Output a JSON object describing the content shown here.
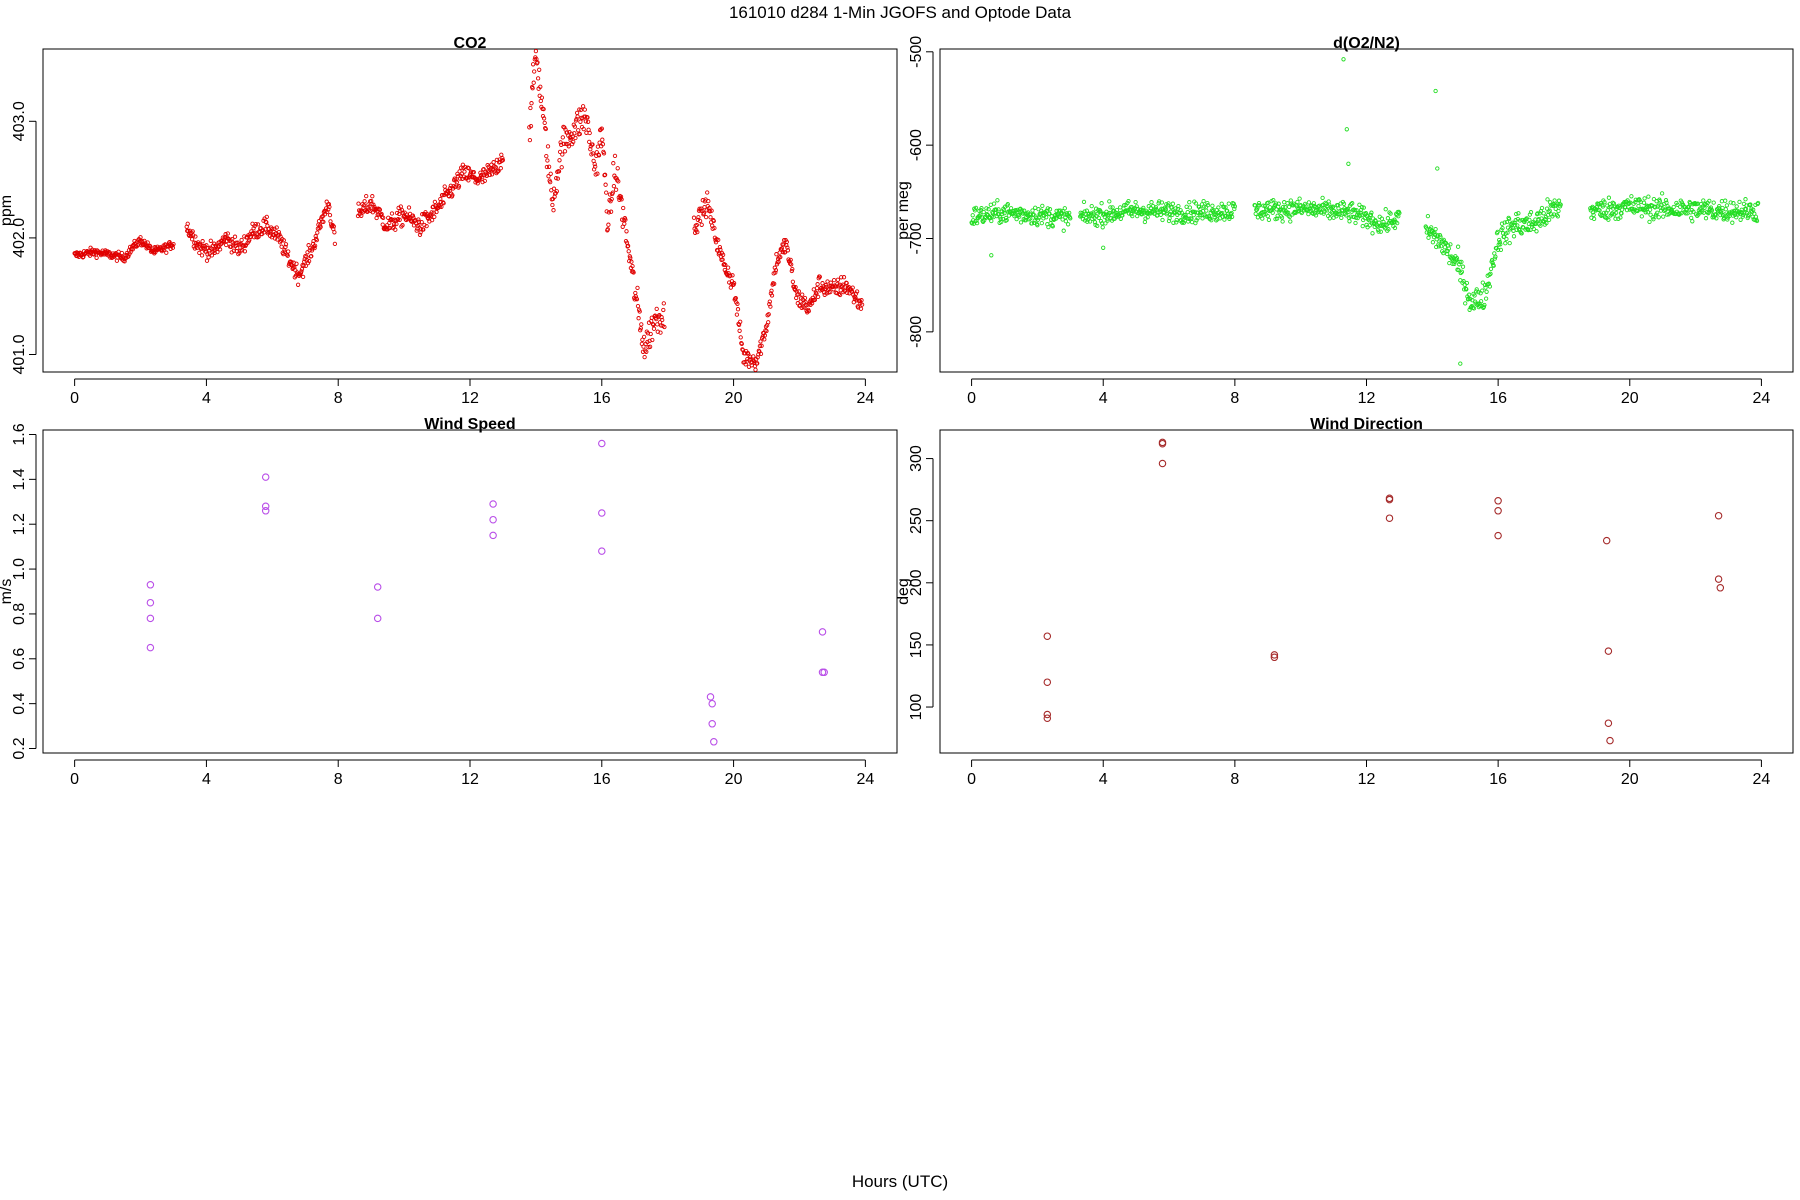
{
  "title": "161010   d284   1-Min  JGOFS and Optode Data",
  "xlabel": "Hours (UTC)",
  "chart_data": [
    {
      "type": "scatter",
      "title": "CO2",
      "ylabel": "ppm",
      "color": "#e00000",
      "xlim": [
        -0.96,
        24.96
      ],
      "ylim": [
        400.85,
        403.62
      ],
      "xticks": [
        0,
        4,
        8,
        12,
        16,
        20,
        24
      ],
      "yticks": [
        401.0,
        402.0,
        403.0
      ],
      "ytick_labels": [
        "401.0",
        "402.0",
        "403.0"
      ],
      "segments": [
        {
          "x0": 0.0,
          "x1": 3.0,
          "anchors": [
            [
              0.0,
              401.85
            ],
            [
              0.6,
              401.88
            ],
            [
              1.0,
              401.86
            ],
            [
              1.5,
              401.83
            ],
            [
              1.8,
              401.93
            ],
            [
              2.0,
              401.98
            ],
            [
              2.4,
              401.88
            ],
            [
              2.8,
              401.92
            ],
            [
              3.0,
              401.95
            ]
          ],
          "noise": 0.03
        },
        {
          "x0": 3.4,
          "x1": 7.9,
          "anchors": [
            [
              3.4,
              402.1
            ],
            [
              3.8,
              401.92
            ],
            [
              4.2,
              401.88
            ],
            [
              4.6,
              402.0
            ],
            [
              5.0,
              401.9
            ],
            [
              5.4,
              402.05
            ],
            [
              5.8,
              402.1
            ],
            [
              6.2,
              402.0
            ],
            [
              6.5,
              401.82
            ],
            [
              6.8,
              401.68
            ],
            [
              7.2,
              401.9
            ],
            [
              7.5,
              402.15
            ],
            [
              7.7,
              402.3
            ],
            [
              7.9,
              401.98
            ]
          ],
          "noise": 0.06
        },
        {
          "x0": 8.6,
          "x1": 13.0,
          "anchors": [
            [
              8.6,
              402.2
            ],
            [
              9.0,
              402.3
            ],
            [
              9.5,
              402.1
            ],
            [
              10.0,
              402.2
            ],
            [
              10.5,
              402.1
            ],
            [
              11.0,
              402.25
            ],
            [
              11.4,
              402.4
            ],
            [
              11.8,
              402.55
            ],
            [
              12.3,
              402.5
            ],
            [
              12.8,
              402.6
            ],
            [
              13.0,
              402.72
            ]
          ],
          "noise": 0.07
        },
        {
          "x0": 13.8,
          "x1": 17.9,
          "anchors": [
            [
              13.8,
              402.9
            ],
            [
              14.0,
              403.6
            ],
            [
              14.2,
              403.1
            ],
            [
              14.5,
              402.3
            ],
            [
              14.8,
              402.8
            ],
            [
              15.2,
              402.95
            ],
            [
              15.5,
              403.05
            ],
            [
              15.8,
              402.6
            ],
            [
              16.0,
              402.9
            ],
            [
              16.2,
              402.1
            ],
            [
              16.4,
              402.6
            ],
            [
              16.7,
              402.1
            ],
            [
              17.0,
              401.55
            ],
            [
              17.3,
              401.05
            ],
            [
              17.6,
              401.3
            ],
            [
              17.9,
              401.35
            ]
          ],
          "noise": 0.12
        },
        {
          "x0": 18.8,
          "x1": 23.9,
          "anchors": [
            [
              18.8,
              402.1
            ],
            [
              19.2,
              402.3
            ],
            [
              19.6,
              401.85
            ],
            [
              20.0,
              401.6
            ],
            [
              20.3,
              400.98
            ],
            [
              20.7,
              400.95
            ],
            [
              21.0,
              401.25
            ],
            [
              21.3,
              401.8
            ],
            [
              21.6,
              401.95
            ],
            [
              21.9,
              401.5
            ],
            [
              22.3,
              401.4
            ],
            [
              22.6,
              401.6
            ],
            [
              23.0,
              401.55
            ],
            [
              23.4,
              401.6
            ],
            [
              23.9,
              401.42
            ]
          ],
          "noise": 0.07
        }
      ]
    },
    {
      "type": "scatter",
      "title": "d(O2/N2)",
      "ylabel": "per meg",
      "color": "#22dd22",
      "xlim": [
        -0.96,
        24.96
      ],
      "ylim": [
        -843,
        -497
      ],
      "xticks": [
        0,
        4,
        8,
        12,
        16,
        20,
        24
      ],
      "yticks": [
        -800,
        -700,
        -600,
        -500
      ],
      "ytick_labels": [
        "-800",
        "-700",
        "-600",
        "-500"
      ],
      "segments": [
        {
          "x0": 0.0,
          "x1": 3.0,
          "anchors": [
            [
              0.0,
              -677
            ],
            [
              1.0,
              -672
            ],
            [
              2.0,
              -675
            ],
            [
              3.0,
              -678
            ]
          ],
          "noise": 9
        },
        {
          "x0": 3.3,
          "x1": 8.0,
          "anchors": [
            [
              3.3,
              -677
            ],
            [
              5.0,
              -670
            ],
            [
              6.5,
              -672
            ],
            [
              8.0,
              -670
            ]
          ],
          "noise": 9
        },
        {
          "x0": 8.6,
          "x1": 13.0,
          "anchors": [
            [
              8.6,
              -670
            ],
            [
              10.0,
              -668
            ],
            [
              11.5,
              -672
            ],
            [
              12.5,
              -685
            ],
            [
              13.0,
              -678
            ]
          ],
          "noise": 9
        },
        {
          "x0": 13.8,
          "x1": 17.9,
          "anchors": [
            [
              13.8,
              -690
            ],
            [
              14.3,
              -705
            ],
            [
              14.8,
              -730
            ],
            [
              15.2,
              -770
            ],
            [
              15.6,
              -760
            ],
            [
              16.0,
              -700
            ],
            [
              16.5,
              -685
            ],
            [
              17.0,
              -685
            ],
            [
              17.9,
              -665
            ]
          ],
          "noise": 12
        },
        {
          "x0": 18.8,
          "x1": 23.9,
          "anchors": [
            [
              18.8,
              -670
            ],
            [
              20.0,
              -666
            ],
            [
              21.0,
              -668
            ],
            [
              22.0,
              -669
            ],
            [
              23.0,
              -670
            ],
            [
              23.9,
              -670
            ]
          ],
          "noise": 10
        }
      ],
      "outliers": [
        [
          11.3,
          -508
        ],
        [
          11.4,
          -583
        ],
        [
          11.45,
          -620
        ],
        [
          14.1,
          -542
        ],
        [
          14.15,
          -625
        ],
        [
          14.85,
          -834
        ],
        [
          0.6,
          -718
        ],
        [
          4.0,
          -710
        ]
      ]
    },
    {
      "type": "scatter",
      "title": "Wind Speed",
      "ylabel": "m/s",
      "color": "#b94ee8",
      "xlim": [
        -0.96,
        24.96
      ],
      "ylim": [
        0.18,
        1.62
      ],
      "xticks": [
        0,
        4,
        8,
        12,
        16,
        20,
        24
      ],
      "yticks": [
        0.2,
        0.4,
        0.6,
        0.8,
        1.0,
        1.2,
        1.4,
        1.6
      ],
      "ytick_labels": [
        "0.2",
        "0.4",
        "0.6",
        "0.8",
        "1.0",
        "1.2",
        "1.4",
        "1.6"
      ],
      "x": [
        2.3,
        2.3,
        2.3,
        2.3,
        5.8,
        5.8,
        5.8,
        9.2,
        9.2,
        12.7,
        12.7,
        12.7,
        16.0,
        16.0,
        16.0,
        19.3,
        19.35,
        19.35,
        19.4,
        22.7,
        22.7,
        22.75
      ],
      "y": [
        0.93,
        0.85,
        0.78,
        0.65,
        1.41,
        1.28,
        1.26,
        0.92,
        0.78,
        1.29,
        1.22,
        1.15,
        1.56,
        1.25,
        1.08,
        0.43,
        0.4,
        0.31,
        0.23,
        0.72,
        0.54,
        0.54
      ]
    },
    {
      "type": "scatter",
      "title": "Wind Direction",
      "ylabel": "deg",
      "color": "#a52a2a",
      "xlim": [
        -0.96,
        24.96
      ],
      "ylim": [
        63,
        323
      ],
      "xticks": [
        0,
        4,
        8,
        12,
        16,
        20,
        24
      ],
      "yticks": [
        100,
        150,
        200,
        250,
        300
      ],
      "ytick_labels": [
        "100",
        "150",
        "200",
        "250",
        "300"
      ],
      "x": [
        2.3,
        2.3,
        2.3,
        2.3,
        5.8,
        5.8,
        5.8,
        9.2,
        9.2,
        12.7,
        12.7,
        12.7,
        16.0,
        16.0,
        16.0,
        19.3,
        19.35,
        19.35,
        19.4,
        22.7,
        22.7,
        22.75
      ],
      "y": [
        157,
        120,
        94,
        91,
        313,
        312,
        296,
        142,
        140,
        268,
        267,
        252,
        266,
        258,
        238,
        234,
        145,
        87,
        73,
        254,
        203,
        196
      ]
    }
  ]
}
